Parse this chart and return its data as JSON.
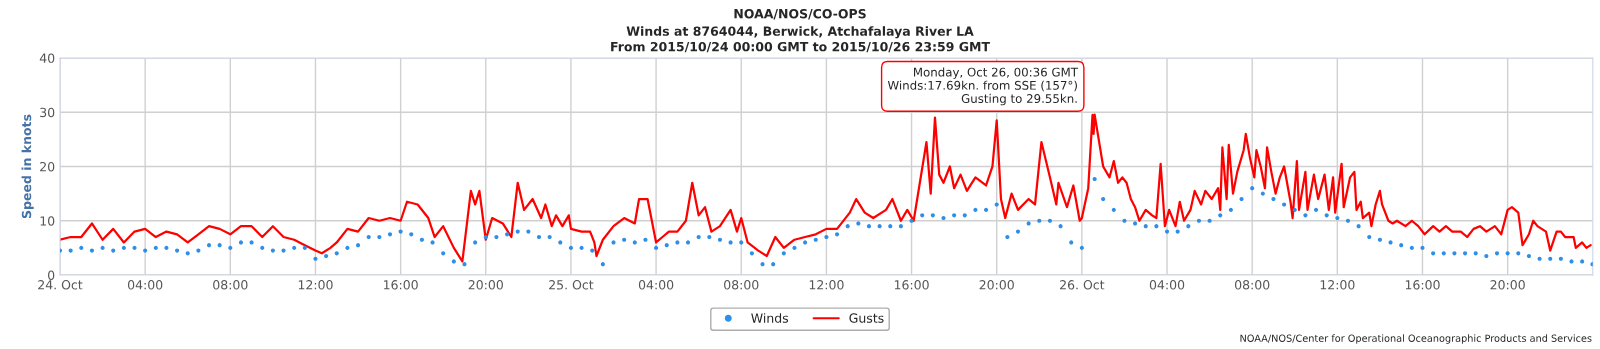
{
  "chart_data": {
    "type": "line",
    "title": "NOAA/NOS/CO-OPS",
    "subtitle": "Winds at 8764044, Berwick, Atchafalaya River LA\nFrom 2015/10/24 00:00 GMT to 2015/10/26 23:59 GMT",
    "ylabel": "Speed in knots",
    "xlim": [
      "2015-10-24T00:00",
      "2015-10-27T00:00"
    ],
    "ylim": [
      0,
      40
    ],
    "yticks": [
      0,
      10,
      20,
      30,
      40
    ],
    "xticks": [
      {
        "value": "2015-10-24T00:00",
        "label": "24. Oct"
      },
      {
        "value": "2015-10-24T04:00",
        "label": "04:00"
      },
      {
        "value": "2015-10-24T08:00",
        "label": "08:00"
      },
      {
        "value": "2015-10-24T12:00",
        "label": "12:00"
      },
      {
        "value": "2015-10-24T16:00",
        "label": "16:00"
      },
      {
        "value": "2015-10-24T20:00",
        "label": "20:00"
      },
      {
        "value": "2015-10-25T00:00",
        "label": "25. Oct"
      },
      {
        "value": "2015-10-25T04:00",
        "label": "04:00"
      },
      {
        "value": "2015-10-25T08:00",
        "label": "08:00"
      },
      {
        "value": "2015-10-25T12:00",
        "label": "12:00"
      },
      {
        "value": "2015-10-25T16:00",
        "label": "16:00"
      },
      {
        "value": "2015-10-25T20:00",
        "label": "20:00"
      },
      {
        "value": "2015-10-26T00:00",
        "label": "26. Oct"
      },
      {
        "value": "2015-10-26T04:00",
        "label": "04:00"
      },
      {
        "value": "2015-10-26T08:00",
        "label": "08:00"
      },
      {
        "value": "2015-10-26T12:00",
        "label": "12:00"
      },
      {
        "value": "2015-10-26T16:00",
        "label": "16:00"
      },
      {
        "value": "2015-10-26T20:00",
        "label": "20:00"
      }
    ],
    "grid": true,
    "legend": "bottom",
    "series": [
      {
        "name": "Winds",
        "type": "scatter",
        "marker": "circle",
        "color": "#2f8fe8",
        "x": [
          "2015-10-24T00:00",
          "2015-10-24T00:30",
          "2015-10-24T01:00",
          "2015-10-24T01:30",
          "2015-10-24T02:00",
          "2015-10-24T02:30",
          "2015-10-24T03:00",
          "2015-10-24T03:30",
          "2015-10-24T04:00",
          "2015-10-24T04:30",
          "2015-10-24T05:00",
          "2015-10-24T05:30",
          "2015-10-24T06:00",
          "2015-10-24T06:30",
          "2015-10-24T07:00",
          "2015-10-24T07:30",
          "2015-10-24T08:00",
          "2015-10-24T08:30",
          "2015-10-24T09:00",
          "2015-10-24T09:30",
          "2015-10-24T10:00",
          "2015-10-24T10:30",
          "2015-10-24T11:00",
          "2015-10-24T11:30",
          "2015-10-24T12:00",
          "2015-10-24T12:30",
          "2015-10-24T13:00",
          "2015-10-24T13:30",
          "2015-10-24T14:00",
          "2015-10-24T14:30",
          "2015-10-24T15:00",
          "2015-10-24T15:30",
          "2015-10-24T16:00",
          "2015-10-24T16:30",
          "2015-10-24T17:00",
          "2015-10-24T17:30",
          "2015-10-24T18:00",
          "2015-10-24T18:30",
          "2015-10-24T19:00",
          "2015-10-24T19:30",
          "2015-10-24T20:00",
          "2015-10-24T20:30",
          "2015-10-24T21:00",
          "2015-10-24T21:30",
          "2015-10-24T22:00",
          "2015-10-24T22:30",
          "2015-10-24T23:00",
          "2015-10-24T23:30",
          "2015-10-25T00:00",
          "2015-10-25T00:30",
          "2015-10-25T01:00",
          "2015-10-25T01:30",
          "2015-10-25T02:00",
          "2015-10-25T02:30",
          "2015-10-25T03:00",
          "2015-10-25T03:30",
          "2015-10-25T04:00",
          "2015-10-25T04:30",
          "2015-10-25T05:00",
          "2015-10-25T05:30",
          "2015-10-25T06:00",
          "2015-10-25T06:30",
          "2015-10-25T07:00",
          "2015-10-25T07:30",
          "2015-10-25T08:00",
          "2015-10-25T08:30",
          "2015-10-25T09:00",
          "2015-10-25T09:30",
          "2015-10-25T10:00",
          "2015-10-25T10:30",
          "2015-10-25T11:00",
          "2015-10-25T11:30",
          "2015-10-25T12:00",
          "2015-10-25T12:30",
          "2015-10-25T13:00",
          "2015-10-25T13:30",
          "2015-10-25T14:00",
          "2015-10-25T14:30",
          "2015-10-25T15:00",
          "2015-10-25T15:30",
          "2015-10-25T16:00",
          "2015-10-25T16:30",
          "2015-10-25T17:00",
          "2015-10-25T17:30",
          "2015-10-25T18:00",
          "2015-10-25T18:30",
          "2015-10-25T19:00",
          "2015-10-25T19:30",
          "2015-10-25T20:00",
          "2015-10-25T20:30",
          "2015-10-25T21:00",
          "2015-10-25T21:30",
          "2015-10-25T22:00",
          "2015-10-25T22:30",
          "2015-10-25T23:00",
          "2015-10-25T23:30",
          "2015-10-26T00:00",
          "2015-10-26T00:36",
          "2015-10-26T01:00",
          "2015-10-26T01:30",
          "2015-10-26T02:00",
          "2015-10-26T02:30",
          "2015-10-26T03:00",
          "2015-10-26T03:30",
          "2015-10-26T04:00",
          "2015-10-26T04:30",
          "2015-10-26T05:00",
          "2015-10-26T05:30",
          "2015-10-26T06:00",
          "2015-10-26T06:30",
          "2015-10-26T07:00",
          "2015-10-26T07:30",
          "2015-10-26T08:00",
          "2015-10-26T08:30",
          "2015-10-26T09:00",
          "2015-10-26T09:30",
          "2015-10-26T10:00",
          "2015-10-26T10:30",
          "2015-10-26T11:00",
          "2015-10-26T11:30",
          "2015-10-26T12:00",
          "2015-10-26T12:30",
          "2015-10-26T13:00",
          "2015-10-26T13:30",
          "2015-10-26T14:00",
          "2015-10-26T14:30",
          "2015-10-26T15:00",
          "2015-10-26T15:30",
          "2015-10-26T16:00",
          "2015-10-26T16:30",
          "2015-10-26T17:00",
          "2015-10-26T17:30",
          "2015-10-26T18:00",
          "2015-10-26T18:30",
          "2015-10-26T19:00",
          "2015-10-26T19:30",
          "2015-10-26T20:00",
          "2015-10-26T20:30",
          "2015-10-26T21:00",
          "2015-10-26T21:30",
          "2015-10-26T22:00",
          "2015-10-26T22:30",
          "2015-10-26T23:00",
          "2015-10-26T23:30",
          "2015-10-26T23:59"
        ],
        "values": [
          4.5,
          4.5,
          5,
          4.5,
          5,
          4.5,
          5,
          5,
          4.5,
          5,
          5,
          4.5,
          4,
          4.5,
          5.5,
          5.5,
          5,
          6,
          6,
          5,
          4.5,
          4.5,
          5,
          5,
          3,
          3.5,
          4,
          5,
          5.5,
          7,
          7,
          7.5,
          8,
          7.5,
          6.5,
          6,
          4,
          2.5,
          2,
          6,
          7,
          7,
          7.5,
          8,
          8,
          7,
          7,
          6,
          5,
          5,
          4.5,
          2,
          6,
          6.5,
          6,
          6.5,
          5,
          5.5,
          6,
          6,
          7,
          7,
          6.5,
          6,
          6,
          4,
          2,
          2,
          4,
          5,
          6,
          6.5,
          7,
          7.5,
          9,
          9.5,
          9,
          9,
          9,
          9,
          10,
          11,
          11,
          10.5,
          11,
          11,
          12,
          12,
          13,
          7,
          8,
          9.5,
          10,
          10,
          9,
          6,
          5,
          17.69,
          14,
          12,
          10,
          9.5,
          9,
          9,
          8,
          8,
          9,
          10,
          10,
          11,
          12,
          14,
          16,
          15,
          14,
          13,
          12,
          11,
          12,
          11,
          10.5,
          10,
          9,
          7,
          6.5,
          6,
          5.5,
          5,
          5,
          4,
          4,
          4,
          4,
          4,
          3.5,
          4,
          4,
          4,
          3.5,
          3,
          3,
          3,
          2.5,
          2.5,
          2
        ]
      },
      {
        "name": "Gusts",
        "color": "#ff0000",
        "x": [
          "2015-10-24T00:00",
          "2015-10-24T00:30",
          "2015-10-24T01:00",
          "2015-10-24T01:30",
          "2015-10-24T02:00",
          "2015-10-24T02:30",
          "2015-10-24T03:00",
          "2015-10-24T03:30",
          "2015-10-24T04:00",
          "2015-10-24T04:30",
          "2015-10-24T05:00",
          "2015-10-24T05:30",
          "2015-10-24T06:00",
          "2015-10-24T06:30",
          "2015-10-24T07:00",
          "2015-10-24T07:30",
          "2015-10-24T08:00",
          "2015-10-24T08:30",
          "2015-10-24T09:00",
          "2015-10-24T09:30",
          "2015-10-24T10:00",
          "2015-10-24T10:30",
          "2015-10-24T11:00",
          "2015-10-24T11:30",
          "2015-10-24T12:00",
          "2015-10-24T12:18",
          "2015-10-24T12:42",
          "2015-10-24T13:00",
          "2015-10-24T13:30",
          "2015-10-24T14:00",
          "2015-10-24T14:30",
          "2015-10-24T15:00",
          "2015-10-24T15:30",
          "2015-10-24T16:00",
          "2015-10-24T16:18",
          "2015-10-24T16:48",
          "2015-10-24T17:18",
          "2015-10-24T17:36",
          "2015-10-24T18:00",
          "2015-10-24T18:30",
          "2015-10-24T18:54",
          "2015-10-24T19:18",
          "2015-10-24T19:30",
          "2015-10-24T19:42",
          "2015-10-24T20:00",
          "2015-10-24T20:18",
          "2015-10-24T20:48",
          "2015-10-24T21:12",
          "2015-10-24T21:30",
          "2015-10-24T21:48",
          "2015-10-24T22:12",
          "2015-10-24T22:36",
          "2015-10-24T22:48",
          "2015-10-24T23:06",
          "2015-10-24T23:18",
          "2015-10-24T23:36",
          "2015-10-24T23:54",
          "2015-10-25T00:00",
          "2015-10-25T00:30",
          "2015-10-25T00:54",
          "2015-10-25T01:06",
          "2015-10-25T01:12",
          "2015-10-25T01:30",
          "2015-10-25T02:00",
          "2015-10-25T02:30",
          "2015-10-25T03:00",
          "2015-10-25T03:12",
          "2015-10-25T03:36",
          "2015-10-25T04:00",
          "2015-10-25T04:18",
          "2015-10-25T04:36",
          "2015-10-25T05:00",
          "2015-10-25T05:24",
          "2015-10-25T05:42",
          "2015-10-25T06:00",
          "2015-10-25T06:18",
          "2015-10-25T06:36",
          "2015-10-25T07:00",
          "2015-10-25T07:30",
          "2015-10-25T07:48",
          "2015-10-25T08:00",
          "2015-10-25T08:18",
          "2015-10-25T08:48",
          "2015-10-25T09:12",
          "2015-10-25T09:36",
          "2015-10-25T10:00",
          "2015-10-25T10:30",
          "2015-10-25T11:00",
          "2015-10-25T11:30",
          "2015-10-25T12:00",
          "2015-10-25T12:30",
          "2015-10-25T13:06",
          "2015-10-25T13:24",
          "2015-10-25T13:48",
          "2015-10-25T14:12",
          "2015-10-25T14:48",
          "2015-10-25T15:06",
          "2015-10-25T15:30",
          "2015-10-25T15:48",
          "2015-10-25T16:06",
          "2015-10-25T16:42",
          "2015-10-25T16:54",
          "2015-10-25T17:06",
          "2015-10-25T17:18",
          "2015-10-25T17:30",
          "2015-10-25T17:48",
          "2015-10-25T18:00",
          "2015-10-25T18:18",
          "2015-10-25T18:36",
          "2015-10-25T19:00",
          "2015-10-25T19:30",
          "2015-10-25T19:48",
          "2015-10-25T20:00",
          "2015-10-25T20:12",
          "2015-10-25T20:24",
          "2015-10-25T20:42",
          "2015-10-25T21:00",
          "2015-10-25T21:30",
          "2015-10-25T21:48",
          "2015-10-25T22:06",
          "2015-10-25T22:30",
          "2015-10-25T22:48",
          "2015-10-25T22:54",
          "2015-10-25T23:18",
          "2015-10-25T23:36",
          "2015-10-25T23:54",
          "2015-10-26T00:00",
          "2015-10-26T00:18",
          "2015-10-26T00:30",
          "2015-10-26T00:33",
          "2015-10-26T00:36",
          "2015-10-26T01:00",
          "2015-10-26T01:18",
          "2015-10-26T01:30",
          "2015-10-26T01:42",
          "2015-10-26T01:54",
          "2015-10-26T02:06",
          "2015-10-26T02:18",
          "2015-10-26T02:30",
          "2015-10-26T02:42",
          "2015-10-26T03:00",
          "2015-10-26T03:18",
          "2015-10-26T03:30",
          "2015-10-26T03:42",
          "2015-10-26T03:54",
          "2015-10-26T04:06",
          "2015-10-26T04:24",
          "2015-10-26T04:36",
          "2015-10-26T04:48",
          "2015-10-26T05:06",
          "2015-10-26T05:18",
          "2015-10-26T05:36",
          "2015-10-26T05:48",
          "2015-10-26T06:06",
          "2015-10-26T06:24",
          "2015-10-26T06:30",
          "2015-10-26T06:36",
          "2015-10-26T06:48",
          "2015-10-26T06:54",
          "2015-10-26T07:06",
          "2015-10-26T07:18",
          "2015-10-26T07:36",
          "2015-10-26T07:42",
          "2015-10-26T07:54",
          "2015-10-26T08:06",
          "2015-10-26T08:12",
          "2015-10-26T08:24",
          "2015-10-26T08:36",
          "2015-10-26T08:42",
          "2015-10-26T08:54",
          "2015-10-26T09:06",
          "2015-10-26T09:18",
          "2015-10-26T09:30",
          "2015-10-26T09:48",
          "2015-10-26T09:54",
          "2015-10-26T10:06",
          "2015-10-26T10:12",
          "2015-10-26T10:30",
          "2015-10-26T10:36",
          "2015-10-26T10:54",
          "2015-10-26T11:06",
          "2015-10-26T11:24",
          "2015-10-26T11:36",
          "2015-10-26T11:48",
          "2015-10-26T11:54",
          "2015-10-26T12:12",
          "2015-10-26T12:18",
          "2015-10-26T12:36",
          "2015-10-26T12:48",
          "2015-10-26T12:54",
          "2015-10-26T13:06",
          "2015-10-26T13:12",
          "2015-10-26T13:30",
          "2015-10-26T13:36",
          "2015-10-26T13:48",
          "2015-10-26T14:00",
          "2015-10-26T14:06",
          "2015-10-26T14:24",
          "2015-10-26T14:36",
          "2015-10-26T14:48",
          "2015-10-26T15:12",
          "2015-10-26T15:30",
          "2015-10-26T15:48",
          "2015-10-26T16:06",
          "2015-10-26T16:30",
          "2015-10-26T16:48",
          "2015-10-26T17:06",
          "2015-10-26T17:24",
          "2015-10-26T17:48",
          "2015-10-26T18:06",
          "2015-10-26T18:24",
          "2015-10-26T18:42",
          "2015-10-26T19:00",
          "2015-10-26T19:24",
          "2015-10-26T19:42",
          "2015-10-26T20:00",
          "2015-10-26T20:12",
          "2015-10-26T20:30",
          "2015-10-26T20:42",
          "2015-10-26T21:00",
          "2015-10-26T21:12",
          "2015-10-26T21:24",
          "2015-10-26T21:48",
          "2015-10-26T22:00",
          "2015-10-26T22:18",
          "2015-10-26T22:30",
          "2015-10-26T22:42",
          "2015-10-26T23:06",
          "2015-10-26T23:12",
          "2015-10-26T23:30",
          "2015-10-26T23:42",
          "2015-10-26T23:54"
        ],
        "values": [
          6.5,
          7,
          7,
          9.5,
          6.5,
          8.5,
          6,
          8,
          8.5,
          7,
          8,
          7.5,
          6,
          7.5,
          9,
          8.5,
          7.5,
          9,
          9,
          7,
          9,
          7,
          6.5,
          5.5,
          4.5,
          4,
          5,
          6,
          8.5,
          8,
          10.5,
          10,
          10.5,
          10,
          13.5,
          13,
          10.5,
          7,
          9,
          5,
          2.5,
          15.5,
          13,
          15.5,
          6.5,
          10.5,
          9.5,
          7,
          17,
          12,
          14,
          10.5,
          13,
          9,
          11,
          9,
          11,
          8.5,
          8,
          8,
          6,
          3.5,
          6.5,
          9,
          10.5,
          9.5,
          14,
          14,
          6,
          7,
          8,
          8,
          10,
          17,
          11,
          12.5,
          8,
          9,
          12,
          8,
          10.5,
          6,
          4.5,
          3.5,
          7,
          5,
          6.5,
          7,
          7.5,
          8.5,
          8.5,
          11.5,
          14,
          11.5,
          10.5,
          12,
          14,
          10,
          12,
          10,
          24.5,
          15,
          29,
          18.5,
          17,
          20,
          16,
          18.5,
          15.5,
          18,
          16.5,
          20,
          28.5,
          14,
          10.5,
          15,
          12,
          14,
          13,
          24.5,
          18,
          13,
          17,
          12.5,
          16.5,
          10,
          10.5,
          16,
          29.5,
          26,
          29.55,
          20,
          18,
          21,
          17,
          18,
          17,
          14,
          12.5,
          10,
          12,
          11,
          10.5,
          20.5,
          9,
          12,
          9,
          13.5,
          10,
          12,
          15.5,
          13,
          15.5,
          14,
          16,
          12,
          23.5,
          14,
          24,
          15,
          19,
          23,
          26,
          21.5,
          18,
          23,
          20,
          16,
          23.5,
          19,
          15,
          18,
          20,
          13.5,
          10.5,
          21,
          12,
          19,
          12,
          18.5,
          14,
          18.5,
          12,
          18,
          11.5,
          20.5,
          12.5,
          18,
          19,
          12,
          13.5,
          10.5,
          11.5,
          9,
          13,
          15.5,
          13,
          10,
          9.5,
          10,
          9,
          10,
          9,
          7.5,
          9,
          8,
          9,
          8,
          8,
          7,
          8.5,
          9,
          8,
          9,
          7.5,
          12,
          12.5,
          11.5,
          5.5,
          7.5,
          10,
          9,
          8,
          4.5,
          8,
          8,
          7,
          7,
          5,
          6,
          5,
          5.5
        ]
      }
    ],
    "annotations": [
      {
        "text": "Monday, Oct 26, 00:36 GMT\nWinds:17.69kn. from SSE (157°)\nGusting to 29.55kn.",
        "x": "2015-10-26T00:36",
        "y": 29.55
      },
      "NOAA/NOS/Center for Operational Oceanographic Products and Services"
    ]
  }
}
